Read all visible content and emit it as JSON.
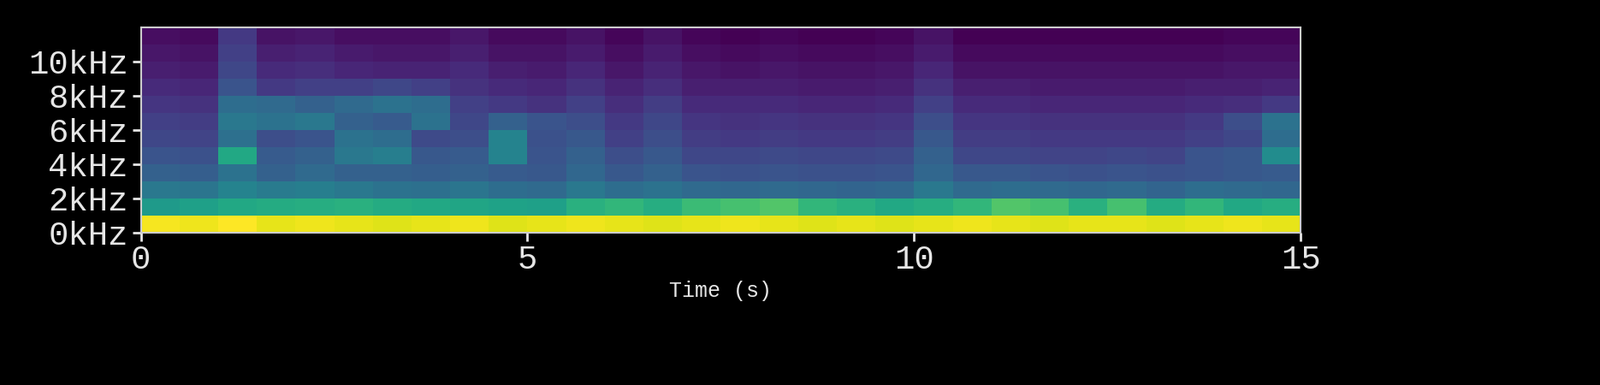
{
  "chart_data": {
    "type": "heatmap",
    "xlabel": "Time (s)",
    "x": [
      0,
      0.5,
      1,
      1.5,
      2,
      2.5,
      3,
      3.5,
      4,
      4.5,
      5,
      5.5,
      6,
      6.5,
      7,
      7.5,
      8,
      8.5,
      9,
      9.5,
      10,
      10.5,
      11,
      11.5,
      12,
      12.5,
      13,
      13.5,
      14,
      14.5,
      15
    ],
    "y": [
      0,
      1,
      2,
      3,
      4,
      5,
      6,
      7,
      8,
      9,
      10,
      11,
      12
    ],
    "cells": [
      [
        0.88,
        0.87,
        0.89,
        0.86,
        0.87,
        0.86,
        0.85,
        0.86,
        0.87,
        0.85,
        0.86,
        0.87,
        0.86,
        0.85,
        0.86,
        0.87,
        0.86,
        0.85,
        0.86,
        0.85,
        0.86,
        0.87,
        0.86,
        0.85,
        0.86,
        0.86,
        0.85,
        0.86,
        0.87,
        0.86
      ],
      [
        0.5,
        0.52,
        0.55,
        0.56,
        0.57,
        0.58,
        0.56,
        0.55,
        0.54,
        0.53,
        0.52,
        0.58,
        0.6,
        0.57,
        0.62,
        0.64,
        0.66,
        0.6,
        0.58,
        0.55,
        0.57,
        0.6,
        0.66,
        0.64,
        0.58,
        0.64,
        0.56,
        0.6,
        0.55,
        0.57
      ],
      [
        0.38,
        0.37,
        0.42,
        0.39,
        0.4,
        0.38,
        0.36,
        0.35,
        0.37,
        0.34,
        0.33,
        0.38,
        0.34,
        0.36,
        0.33,
        0.32,
        0.33,
        0.32,
        0.31,
        0.32,
        0.38,
        0.33,
        0.34,
        0.33,
        0.32,
        0.33,
        0.31,
        0.34,
        0.33,
        0.32
      ],
      [
        0.3,
        0.29,
        0.36,
        0.3,
        0.33,
        0.3,
        0.3,
        0.29,
        0.3,
        0.28,
        0.27,
        0.32,
        0.27,
        0.3,
        0.26,
        0.25,
        0.26,
        0.25,
        0.25,
        0.26,
        0.32,
        0.27,
        0.27,
        0.26,
        0.25,
        0.26,
        0.25,
        0.26,
        0.27,
        0.28
      ],
      [
        0.26,
        0.25,
        0.55,
        0.28,
        0.3,
        0.38,
        0.4,
        0.27,
        0.28,
        0.42,
        0.26,
        0.3,
        0.24,
        0.27,
        0.22,
        0.22,
        0.23,
        0.22,
        0.22,
        0.23,
        0.3,
        0.22,
        0.22,
        0.21,
        0.21,
        0.22,
        0.21,
        0.26,
        0.27,
        0.45
      ],
      [
        0.22,
        0.21,
        0.35,
        0.24,
        0.26,
        0.36,
        0.34,
        0.23,
        0.24,
        0.42,
        0.25,
        0.27,
        0.2,
        0.24,
        0.19,
        0.18,
        0.19,
        0.18,
        0.18,
        0.19,
        0.27,
        0.19,
        0.19,
        0.18,
        0.18,
        0.18,
        0.18,
        0.2,
        0.22,
        0.34
      ],
      [
        0.2,
        0.19,
        0.38,
        0.36,
        0.38,
        0.3,
        0.28,
        0.36,
        0.22,
        0.3,
        0.26,
        0.24,
        0.18,
        0.22,
        0.17,
        0.16,
        0.17,
        0.16,
        0.16,
        0.17,
        0.24,
        0.17,
        0.17,
        0.16,
        0.16,
        0.16,
        0.16,
        0.18,
        0.24,
        0.36
      ],
      [
        0.17,
        0.16,
        0.34,
        0.33,
        0.3,
        0.33,
        0.36,
        0.34,
        0.2,
        0.18,
        0.16,
        0.2,
        0.15,
        0.19,
        0.14,
        0.14,
        0.14,
        0.13,
        0.13,
        0.14,
        0.2,
        0.14,
        0.14,
        0.13,
        0.13,
        0.13,
        0.13,
        0.14,
        0.15,
        0.18
      ],
      [
        0.14,
        0.13,
        0.26,
        0.18,
        0.2,
        0.2,
        0.22,
        0.2,
        0.16,
        0.14,
        0.13,
        0.16,
        0.12,
        0.15,
        0.11,
        0.11,
        0.11,
        0.1,
        0.1,
        0.11,
        0.16,
        0.11,
        0.11,
        0.1,
        0.1,
        0.1,
        0.1,
        0.11,
        0.11,
        0.12
      ],
      [
        0.11,
        0.1,
        0.22,
        0.14,
        0.15,
        0.13,
        0.12,
        0.12,
        0.14,
        0.11,
        0.1,
        0.13,
        0.09,
        0.12,
        0.09,
        0.08,
        0.09,
        0.08,
        0.08,
        0.09,
        0.13,
        0.08,
        0.08,
        0.08,
        0.08,
        0.08,
        0.08,
        0.08,
        0.09,
        0.09
      ],
      [
        0.09,
        0.08,
        0.2,
        0.11,
        0.12,
        0.1,
        0.09,
        0.09,
        0.11,
        0.08,
        0.08,
        0.1,
        0.07,
        0.1,
        0.07,
        0.06,
        0.07,
        0.06,
        0.06,
        0.07,
        0.1,
        0.06,
        0.06,
        0.06,
        0.06,
        0.06,
        0.06,
        0.06,
        0.07,
        0.07
      ],
      [
        0.07,
        0.06,
        0.18,
        0.08,
        0.09,
        0.07,
        0.07,
        0.07,
        0.09,
        0.06,
        0.06,
        0.08,
        0.05,
        0.08,
        0.05,
        0.04,
        0.05,
        0.04,
        0.04,
        0.05,
        0.08,
        0.04,
        0.04,
        0.04,
        0.04,
        0.04,
        0.04,
        0.04,
        0.05,
        0.05
      ]
    ],
    "xlim": [
      0,
      15
    ],
    "xticks": [
      0,
      5,
      10,
      15
    ],
    "ylim": [
      0,
      12
    ],
    "yticks": [
      {
        "value": 0,
        "label": "0kHz"
      },
      {
        "value": 2,
        "label": "2kHz"
      },
      {
        "value": 4,
        "label": "4kHz"
      },
      {
        "value": 6,
        "label": "6kHz"
      },
      {
        "value": 8,
        "label": "8kHz"
      },
      {
        "value": 10,
        "label": "10kHz"
      }
    ]
  }
}
